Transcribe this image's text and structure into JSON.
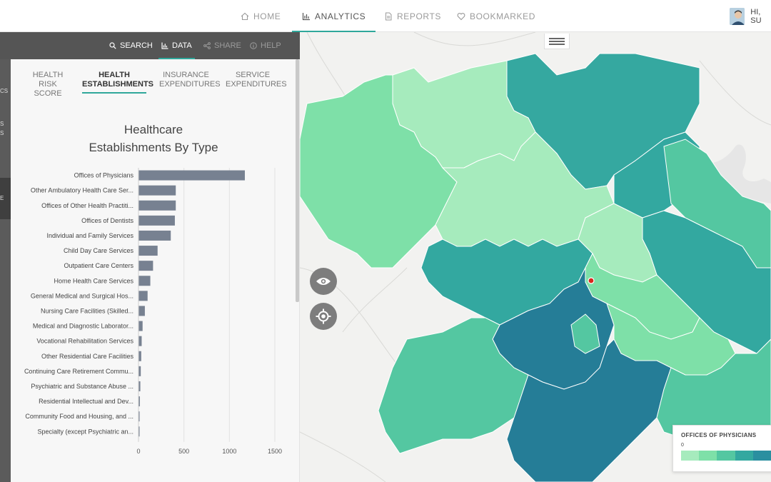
{
  "nav": {
    "items": [
      {
        "label": "HOME",
        "icon": "home-icon"
      },
      {
        "label": "ANALYTICS",
        "icon": "bar-chart-icon"
      },
      {
        "label": "REPORTS",
        "icon": "document-icon"
      },
      {
        "label": "BOOKMARKED",
        "icon": "heart-icon"
      }
    ],
    "active": "ANALYTICS",
    "user_greeting": "HI, SU"
  },
  "rail": {
    "fragments": [
      "CS",
      "S",
      "S",
      "E"
    ]
  },
  "toolbar": {
    "items": [
      {
        "label": "SEARCH",
        "icon": "search-icon"
      },
      {
        "label": "DATA",
        "icon": "bar-chart-icon"
      },
      {
        "label": "SHARE",
        "icon": "share-icon"
      },
      {
        "label": "HELP",
        "icon": "info-icon"
      }
    ],
    "active": "DATA"
  },
  "subtabs": [
    {
      "line1": "HEALTH",
      "line2": "RISK SCORE"
    },
    {
      "line1": "HEALTH",
      "line2": "ESTABLISHMENTS"
    },
    {
      "line1": "INSURANCE",
      "line2": "EXPENDITURES"
    },
    {
      "line1": "SERVICE",
      "line2": "EXPENDITURES"
    }
  ],
  "subtabs_active": 1,
  "chart_data": {
    "type": "bar",
    "orientation": "horizontal",
    "title": "Healthcare Establishments By Type",
    "title_lines": [
      "Healthcare",
      "Establishments By Type"
    ],
    "categories": [
      "Offices of Physicians",
      "Other Ambulatory Health Care Ser...",
      "Offices of Other Health Practiti...",
      "Offices of Dentists",
      "Individual and Family Services",
      "Child Day Care Services",
      "Outpatient Care Centers",
      "Home Health Care Services",
      "General Medical and Surgical Hos...",
      "Nursing Care Facilities (Skilled...",
      "Medical and Diagnostic Laborator...",
      "Vocational Rehabilitation Services",
      "Other Residential Care Facilities",
      "Continuing Care Retirement Commu...",
      "Psychiatric and Substance Abuse ...",
      "Residential Intellectual and Dev...",
      "Community Food and Housing, and ...",
      "Specialty (except Psychiatric an..."
    ],
    "values": [
      1170,
      410,
      410,
      400,
      355,
      210,
      160,
      130,
      100,
      70,
      45,
      35,
      30,
      25,
      20,
      15,
      12,
      8
    ],
    "xlim": [
      0,
      1500
    ],
    "xticks": [
      "0",
      "500",
      "1000",
      "1500"
    ],
    "bar_color": "#778191",
    "grid": true
  },
  "map": {
    "legend": {
      "title": "OFFICES OF PHYSICIANS",
      "min_label": "0",
      "colors": [
        "#a6ebbd",
        "#7ee0a8",
        "#54c7a1",
        "#33a8a0",
        "#2a8fa0"
      ]
    },
    "controls": [
      "eye-icon",
      "crosshair-icon",
      "hamburger-icon"
    ],
    "marker_color": "#d9261c"
  }
}
